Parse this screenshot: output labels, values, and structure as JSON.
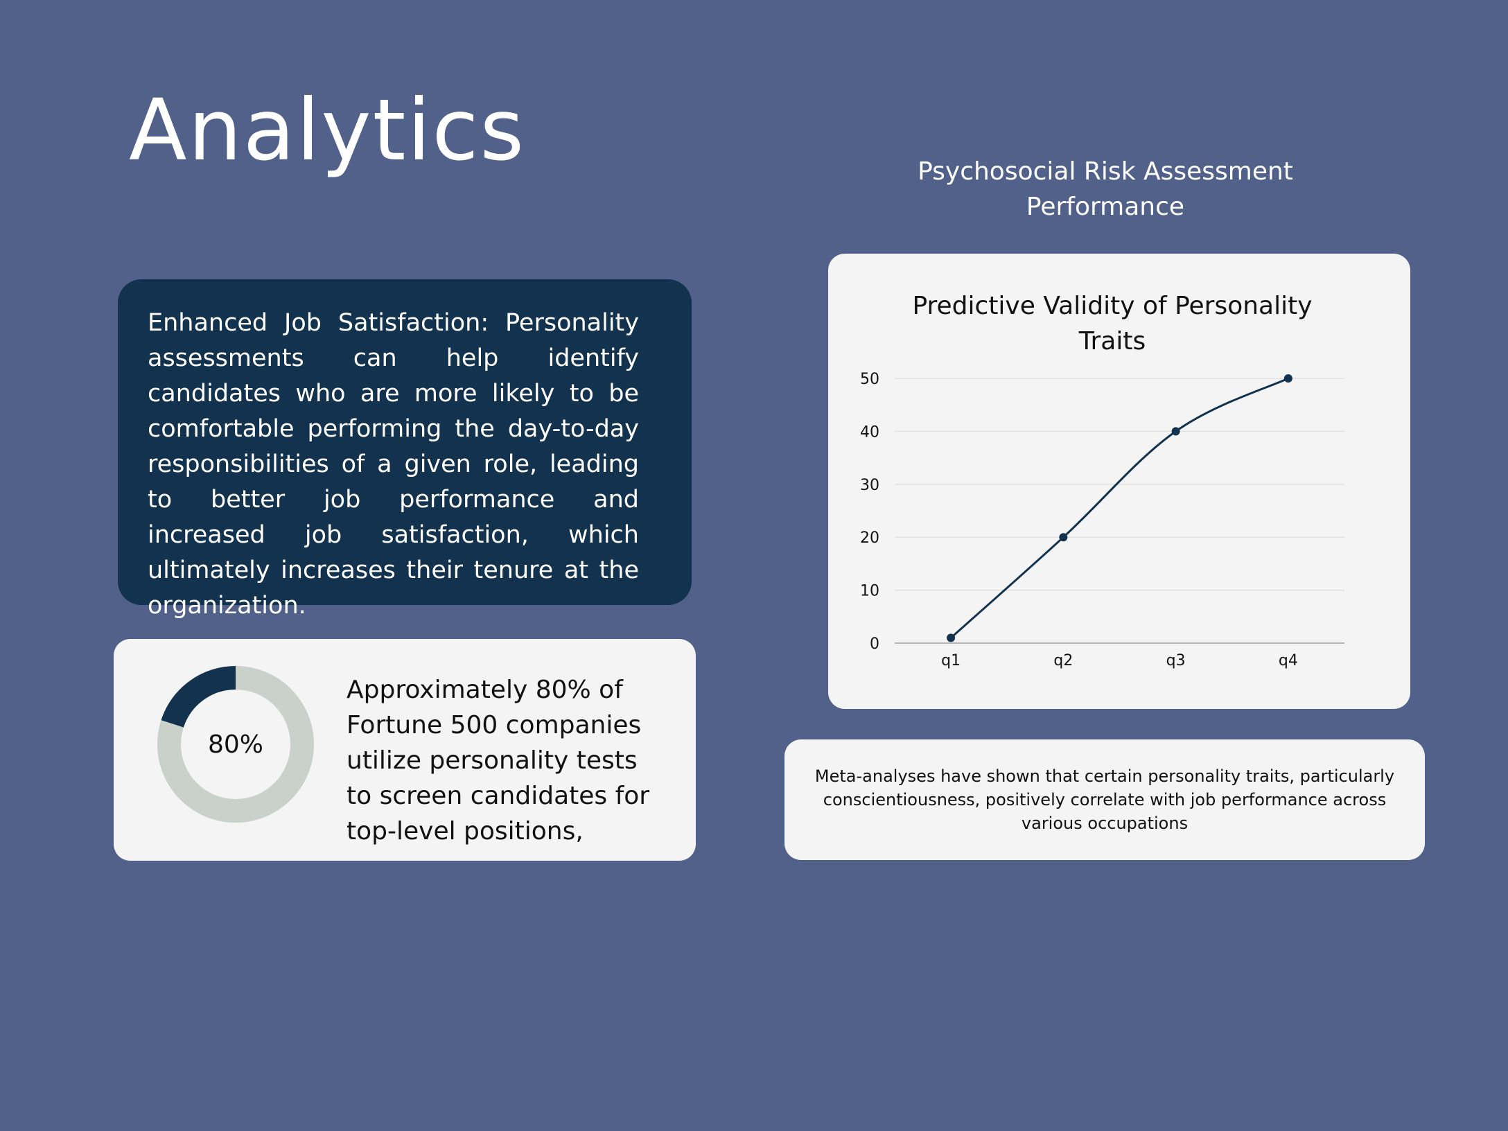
{
  "page": {
    "title": "Analytics"
  },
  "right_heading": [
    "Psychosocial Risk Assessment",
    "Performance"
  ],
  "satisfaction_card": {
    "text": "Enhanced Job Satisfaction: Personality assessments can help identify candidates who are more likely to be comfortable performing the day-to-day responsibilities of a given role, leading to better job performance and increased job satisfaction, which ultimately increases their tenure at the organization."
  },
  "stat_card": {
    "percent_label": "80%",
    "percent_value": 0.8,
    "text": "Approximately 80% of Fortune 500 companies utilize personality tests to screen candidates for top-level positions,",
    "colors": {
      "filled": "#12324e",
      "remaining": "#c9d1ca"
    }
  },
  "note_card": {
    "text": "Meta-analyses have shown that certain personality traits, particularly conscientiousness, positively correlate with job performance across various occupations"
  },
  "chart_data": {
    "type": "line",
    "title": "Predictive Validity of Personality Traits",
    "title_lines": [
      "Predictive Validity of Personality",
      "Traits"
    ],
    "categories": [
      "q1",
      "q2",
      "q3",
      "q4"
    ],
    "series": [
      {
        "values": [
          1,
          20,
          40,
          50
        ]
      }
    ],
    "ylim": [
      0,
      50
    ],
    "yticks": [
      0,
      10,
      20,
      30,
      40,
      50
    ],
    "grid": true,
    "smooth": true,
    "color": "#12324e"
  }
}
